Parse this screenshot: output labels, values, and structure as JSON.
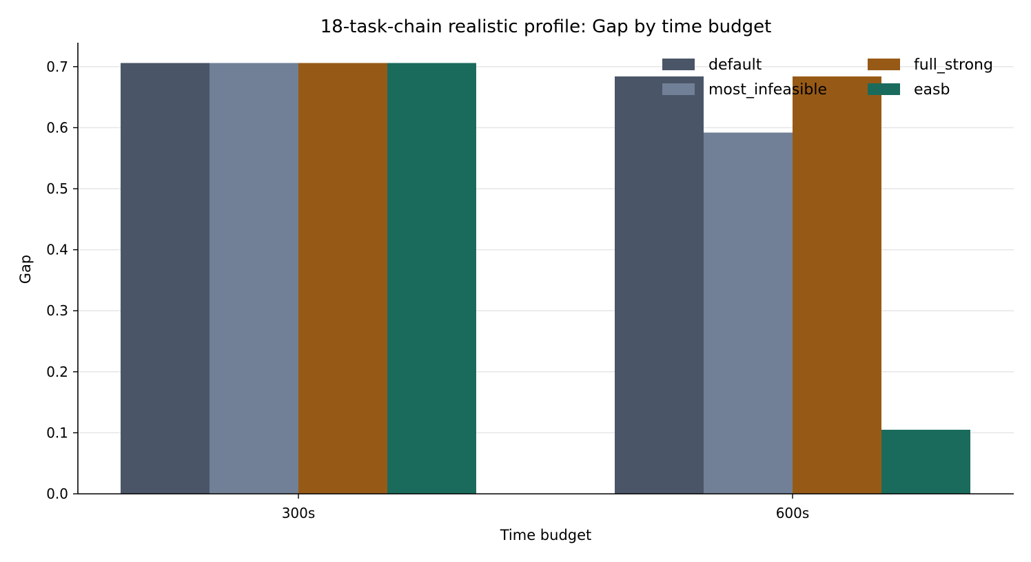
{
  "chart_data": {
    "type": "bar",
    "title": "18-task-chain realistic profile: Gap by time budget",
    "xlabel": "Time budget",
    "ylabel": "Gap",
    "categories": [
      "300s",
      "600s"
    ],
    "ylim": [
      0,
      0.74
    ],
    "yticks": [
      0.0,
      0.1,
      0.2,
      0.3,
      0.4,
      0.5,
      0.6,
      0.7
    ],
    "ytick_labels": [
      "0.0",
      "0.1",
      "0.2",
      "0.3",
      "0.4",
      "0.5",
      "0.6",
      "0.7"
    ],
    "grid": "horizontal",
    "legend_position": "top-right",
    "series": [
      {
        "name": "default",
        "color": "#4a5568",
        "values": [
          0.706,
          0.684
        ]
      },
      {
        "name": "most_infeasible",
        "color": "#718096",
        "values": [
          0.706,
          0.592
        ]
      },
      {
        "name": "full_strong",
        "color": "#975a16",
        "values": [
          0.706,
          0.684
        ]
      },
      {
        "name": "easb",
        "color": "#1a6b5c",
        "values": [
          0.706,
          0.105
        ]
      }
    ]
  }
}
